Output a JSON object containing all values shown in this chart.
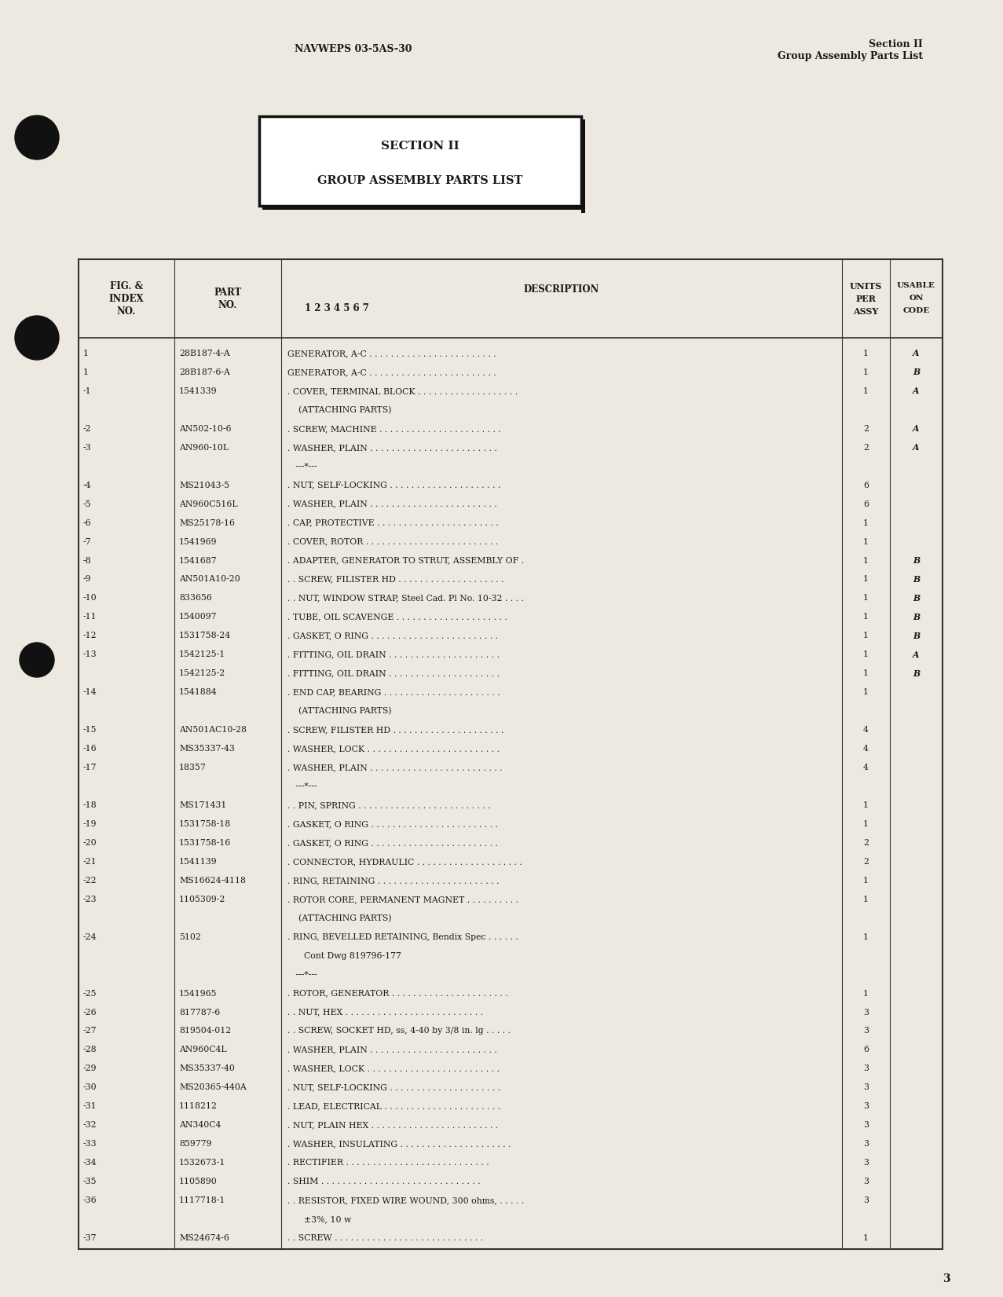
{
  "bg_color": "#ede9e0",
  "text_color": "#1a1a1a",
  "header_left": "NAVWEPS 03-5AS-30",
  "header_right_line1": "Section II",
  "header_right_line2": "Group Assembly Parts List",
  "section_box_title": "SECTION II",
  "section_box_subtitle": "GROUP ASSEMBLY PARTS LIST",
  "page_number": "3",
  "rows": [
    {
      "fig": "1",
      "part": "28B187-4-A",
      "desc": "GENERATOR, A-C . . . . . . . . . . . . . . . . . . . . . . . .",
      "units": "1",
      "code": "A"
    },
    {
      "fig": "1",
      "part": "28B187-6-A",
      "desc": "GENERATOR, A-C . . . . . . . . . . . . . . . . . . . . . . . .",
      "units": "1",
      "code": "B"
    },
    {
      "fig": "-1",
      "part": "1541339",
      "desc": ". COVER, TERMINAL BLOCK . . . . . . . . . . . . . . . . . . .",
      "units": "1",
      "code": "A"
    },
    {
      "fig": "",
      "part": "",
      "desc": "    (ATTACHING PARTS)",
      "units": "",
      "code": ""
    },
    {
      "fig": "-2",
      "part": "AN502-10-6",
      "desc": ". SCREW, MACHINE . . . . . . . . . . . . . . . . . . . . . . .",
      "units": "2",
      "code": "A"
    },
    {
      "fig": "-3",
      "part": "AN960-10L",
      "desc": ". WASHER, PLAIN . . . . . . . . . . . . . . . . . . . . . . . .",
      "units": "2",
      "code": "A"
    },
    {
      "fig": "",
      "part": "",
      "desc": "   ---*---",
      "units": "",
      "code": ""
    },
    {
      "fig": "-4",
      "part": "MS21043-5",
      "desc": ". NUT, SELF-LOCKING . . . . . . . . . . . . . . . . . . . . .",
      "units": "6",
      "code": ""
    },
    {
      "fig": "-5",
      "part": "AN960C516L",
      "desc": ". WASHER, PLAIN . . . . . . . . . . . . . . . . . . . . . . . .",
      "units": "6",
      "code": ""
    },
    {
      "fig": "-6",
      "part": "MS25178-16",
      "desc": ". CAP, PROTECTIVE . . . . . . . . . . . . . . . . . . . . . . .",
      "units": "1",
      "code": ""
    },
    {
      "fig": "-7",
      "part": "1541969",
      "desc": ". COVER, ROTOR . . . . . . . . . . . . . . . . . . . . . . . . .",
      "units": "1",
      "code": ""
    },
    {
      "fig": "-8",
      "part": "1541687",
      "desc": ". ADAPTER, GENERATOR TO STRUT, ASSEMBLY OF .",
      "units": "1",
      "code": "B"
    },
    {
      "fig": "-9",
      "part": "AN501A10-20",
      "desc": ". . SCREW, FILISTER HD . . . . . . . . . . . . . . . . . . . .",
      "units": "1",
      "code": "B"
    },
    {
      "fig": "-10",
      "part": "833656",
      "desc": ". . NUT, WINDOW STRAP, Steel Cad. Pl No. 10-32 . . . .",
      "units": "1",
      "code": "B"
    },
    {
      "fig": "-11",
      "part": "1540097",
      "desc": ". TUBE, OIL SCAVENGE . . . . . . . . . . . . . . . . . . . . .",
      "units": "1",
      "code": "B"
    },
    {
      "fig": "-12",
      "part": "1531758-24",
      "desc": ". GASKET, O RING . . . . . . . . . . . . . . . . . . . . . . . .",
      "units": "1",
      "code": "B"
    },
    {
      "fig": "-13",
      "part": "1542125-1",
      "desc": ". FITTING, OIL DRAIN . . . . . . . . . . . . . . . . . . . . .",
      "units": "1",
      "code": "A"
    },
    {
      "fig": "",
      "part": "1542125-2",
      "desc": ". FITTING, OIL DRAIN . . . . . . . . . . . . . . . . . . . . .",
      "units": "1",
      "code": "B"
    },
    {
      "fig": "-14",
      "part": "1541884",
      "desc": ". END CAP, BEARING . . . . . . . . . . . . . . . . . . . . . .",
      "units": "1",
      "code": ""
    },
    {
      "fig": "",
      "part": "",
      "desc": "    (ATTACHING PARTS)",
      "units": "",
      "code": ""
    },
    {
      "fig": "-15",
      "part": "AN501AC10-28",
      "desc": ". SCREW, FILISTER HD . . . . . . . . . . . . . . . . . . . . .",
      "units": "4",
      "code": ""
    },
    {
      "fig": "-16",
      "part": "MS35337-43",
      "desc": ". WASHER, LOCK . . . . . . . . . . . . . . . . . . . . . . . . .",
      "units": "4",
      "code": ""
    },
    {
      "fig": "-17",
      "part": "18357",
      "desc": ". WASHER, PLAIN . . . . . . . . . . . . . . . . . . . . . . . . .",
      "units": "4",
      "code": ""
    },
    {
      "fig": "",
      "part": "",
      "desc": "   ---*---",
      "units": "",
      "code": ""
    },
    {
      "fig": "-18",
      "part": "MS171431",
      "desc": ". . PIN, SPRING . . . . . . . . . . . . . . . . . . . . . . . . .",
      "units": "1",
      "code": ""
    },
    {
      "fig": "-19",
      "part": "1531758-18",
      "desc": ". GASKET, O RING . . . . . . . . . . . . . . . . . . . . . . . .",
      "units": "1",
      "code": ""
    },
    {
      "fig": "-20",
      "part": "1531758-16",
      "desc": ". GASKET, O RING . . . . . . . . . . . . . . . . . . . . . . . .",
      "units": "2",
      "code": ""
    },
    {
      "fig": "-21",
      "part": "1541139",
      "desc": ". CONNECTOR, HYDRAULIC . . . . . . . . . . . . . . . . . . . .",
      "units": "2",
      "code": ""
    },
    {
      "fig": "-22",
      "part": "MS16624-4118",
      "desc": ". RING, RETAINING . . . . . . . . . . . . . . . . . . . . . . .",
      "units": "1",
      "code": ""
    },
    {
      "fig": "-23",
      "part": "1105309-2",
      "desc": ". ROTOR CORE, PERMANENT MAGNET . . . . . . . . . .",
      "units": "1",
      "code": ""
    },
    {
      "fig": "",
      "part": "",
      "desc": "    (ATTACHING PARTS)",
      "units": "",
      "code": ""
    },
    {
      "fig": "-24",
      "part": "5102",
      "desc": ". RING, BEVELLED RETAINING, Bendix Spec . . . . . .",
      "units": "1",
      "code": ""
    },
    {
      "fig": "",
      "part": "",
      "desc": "      Cont Dwg 819796-177",
      "units": "",
      "code": ""
    },
    {
      "fig": "",
      "part": "",
      "desc": "   ---*---",
      "units": "",
      "code": ""
    },
    {
      "fig": "-25",
      "part": "1541965",
      "desc": ". ROTOR, GENERATOR . . . . . . . . . . . . . . . . . . . . . .",
      "units": "1",
      "code": ""
    },
    {
      "fig": "-26",
      "part": "817787-6",
      "desc": ". . NUT, HEX . . . . . . . . . . . . . . . . . . . . . . . . . .",
      "units": "3",
      "code": ""
    },
    {
      "fig": "-27",
      "part": "819504-012",
      "desc": ". . SCREW, SOCKET HD, ss, 4-40 by 3/8 in. lg . . . . .",
      "units": "3",
      "code": ""
    },
    {
      "fig": "-28",
      "part": "AN960C4L",
      "desc": ". WASHER, PLAIN . . . . . . . . . . . . . . . . . . . . . . . .",
      "units": "6",
      "code": ""
    },
    {
      "fig": "-29",
      "part": "MS35337-40",
      "desc": ". WASHER, LOCK . . . . . . . . . . . . . . . . . . . . . . . . .",
      "units": "3",
      "code": ""
    },
    {
      "fig": "-30",
      "part": "MS20365-440A",
      "desc": ". NUT, SELF-LOCKING . . . . . . . . . . . . . . . . . . . . .",
      "units": "3",
      "code": ""
    },
    {
      "fig": "-31",
      "part": "1118212",
      "desc": ". LEAD, ELECTRICAL . . . . . . . . . . . . . . . . . . . . . .",
      "units": "3",
      "code": ""
    },
    {
      "fig": "-32",
      "part": "AN340C4",
      "desc": ". NUT, PLAIN HEX . . . . . . . . . . . . . . . . . . . . . . . .",
      "units": "3",
      "code": ""
    },
    {
      "fig": "-33",
      "part": "859779",
      "desc": ". WASHER, INSULATING . . . . . . . . . . . . . . . . . . . . .",
      "units": "3",
      "code": ""
    },
    {
      "fig": "-34",
      "part": "1532673-1",
      "desc": ". RECTIFIER . . . . . . . . . . . . . . . . . . . . . . . . . . .",
      "units": "3",
      "code": ""
    },
    {
      "fig": "-35",
      "part": "1105890",
      "desc": ". SHIM . . . . . . . . . . . . . . . . . . . . . . . . . . . . . .",
      "units": "3",
      "code": ""
    },
    {
      "fig": "-36",
      "part": "1117718-1",
      "desc": ". . RESISTOR, FIXED WIRE WOUND, 300 ohms, . . . . .",
      "units": "3",
      "code": ""
    },
    {
      "fig": "",
      "part": "",
      "desc": "      ±3%, 10 w",
      "units": "",
      "code": ""
    },
    {
      "fig": "-37",
      "part": "MS24674-6",
      "desc": ". . SCREW . . . . . . . . . . . . . . . . . . . . . . . . . . . .",
      "units": "1",
      "code": ""
    }
  ]
}
